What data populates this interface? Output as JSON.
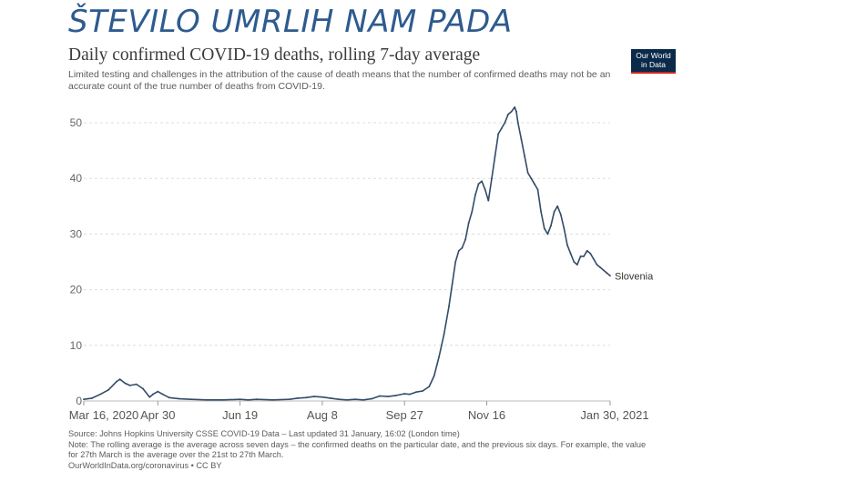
{
  "slide_title": "ŠTEVILO UMRLIH NAM PADA",
  "logo": {
    "line1": "Our World",
    "line2": "in Data"
  },
  "colors": {
    "title": "#2e5b8f",
    "line": "#334b68",
    "grid": "#dddddd",
    "logo_bg": "#0b2a4a",
    "logo_accent": "#ce261e"
  },
  "chart_data": {
    "type": "line",
    "title": "Daily confirmed COVID-19 deaths, rolling 7-day average",
    "subtitle": "Limited testing and challenges in the attribution of the cause of death means that the number of confirmed deaths may not be an accurate count of the true number of deaths from COVID-19.",
    "xlabel": "",
    "ylabel": "",
    "ylim": [
      0,
      50
    ],
    "xlim": [
      0,
      320
    ],
    "yticks": [
      "0",
      "10",
      "20",
      "30",
      "40",
      "50"
    ],
    "xticks": [
      {
        "day": 0,
        "label": "Mar 16, 2020"
      },
      {
        "day": 45,
        "label": "Apr 30"
      },
      {
        "day": 95,
        "label": "Jun 19"
      },
      {
        "day": 145,
        "label": "Aug 8"
      },
      {
        "day": 195,
        "label": "Sep 27"
      },
      {
        "day": 245,
        "label": "Nov 16"
      },
      {
        "day": 320,
        "label": "Jan 30, 2021"
      }
    ],
    "series": [
      {
        "name": "Slovenia",
        "x": [
          0,
          5,
          10,
          15,
          20,
          22,
          25,
          28,
          32,
          36,
          40,
          42,
          45,
          48,
          52,
          58,
          65,
          75,
          85,
          95,
          100,
          105,
          115,
          125,
          130,
          135,
          140,
          145,
          150,
          155,
          160,
          165,
          170,
          175,
          180,
          185,
          190,
          195,
          198,
          202,
          206,
          210,
          213,
          216,
          219,
          222,
          224,
          226,
          228,
          230,
          232,
          234,
          236,
          238,
          240,
          242,
          244,
          246,
          248,
          250,
          252,
          254,
          256,
          258,
          260,
          262,
          263,
          264,
          266,
          268,
          270,
          272,
          274,
          276,
          278,
          280,
          282,
          284,
          286,
          288,
          290,
          292,
          294,
          296,
          298,
          300,
          302,
          304,
          306,
          308,
          310,
          312,
          314,
          316,
          318,
          320
        ],
        "y": [
          0.3,
          0.5,
          1.2,
          2.0,
          3.5,
          3.9,
          3.2,
          2.8,
          3.0,
          2.2,
          0.7,
          1.2,
          1.7,
          1.2,
          0.6,
          0.4,
          0.3,
          0.2,
          0.2,
          0.3,
          0.2,
          0.3,
          0.2,
          0.3,
          0.5,
          0.6,
          0.8,
          0.7,
          0.5,
          0.3,
          0.2,
          0.3,
          0.2,
          0.4,
          0.9,
          0.8,
          1.0,
          1.3,
          1.2,
          1.6,
          1.8,
          2.6,
          4.5,
          8.0,
          12.0,
          17.0,
          21.0,
          25.0,
          27.0,
          27.5,
          29.0,
          32.0,
          34.0,
          37.0,
          39.0,
          39.5,
          38.0,
          36.0,
          40.0,
          44.0,
          48.0,
          49.0,
          50.0,
          51.5,
          52.0,
          52.8,
          52.0,
          50.0,
          47.0,
          44.0,
          41.0,
          40.0,
          39.0,
          38.0,
          34.0,
          31.0,
          30.0,
          31.5,
          34.0,
          35.0,
          33.5,
          31.0,
          28.0,
          26.5,
          25.0,
          24.5,
          26.0,
          26.0,
          27.0,
          26.5,
          25.5,
          24.5,
          24.0,
          23.5,
          23.0,
          22.5
        ]
      }
    ]
  },
  "source": {
    "line1": "Source: Johns Hopkins University CSSE COVID-19 Data – Last updated 31 January, 16:02 (London time)",
    "line2": "Note: The rolling average is the average across seven days – the confirmed deaths on the particular date, and the previous six days. For example, the value for 27th March is the average over the 21st to 27th March.",
    "line3": "OurWorldInData.org/coronavirus • CC BY"
  }
}
